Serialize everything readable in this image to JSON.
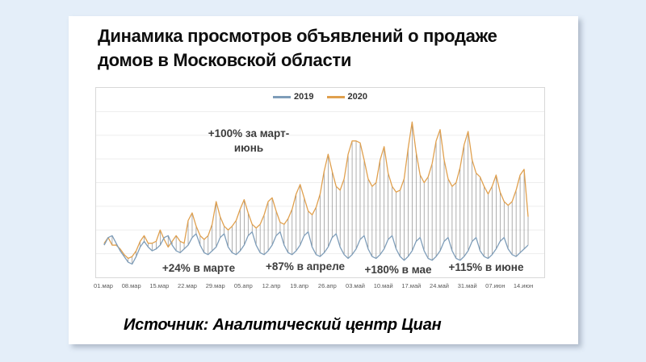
{
  "page": {
    "background": "#e4eef9",
    "card_background": "#ffffff"
  },
  "card": {
    "title_line1": "Динамика просмотров объявлений о продаже",
    "title_line2": "домов в Московской области",
    "source": "Источник: Аналитический центр Циан"
  },
  "chart": {
    "legend": [
      {
        "label": "2019",
        "color": "#7e9db9"
      },
      {
        "label": "2020",
        "color": "#e0a04e"
      }
    ],
    "annotations": {
      "march_june_line1": "+100% за март-",
      "march_june_line2": "июнь",
      "march": "+24% в марте",
      "april": "+87% в апреле",
      "may": "+180% в мае",
      "june": "+115% в июне"
    }
  },
  "chart_data": {
    "type": "line",
    "title": "Динамика просмотров объявлений о продаже домов в Московской области",
    "xlabel": "",
    "ylabel": "",
    "x_tick_labels": [
      "01.мар",
      "08.мар",
      "15.мар",
      "22.мар",
      "29.мар",
      "05.апр",
      "12.апр",
      "19.апр",
      "26.апр",
      "03.май",
      "10.май",
      "17.май",
      "24.май",
      "31.май",
      "07.июн",
      "14.июн"
    ],
    "x_unit": "daily, 01 March – 15 June",
    "ylim": [
      0,
      100
    ],
    "grid": "horizontal-light",
    "legend_position": "top-center",
    "connector_color": "#8c8c8c",
    "series": [
      {
        "name": "2019",
        "color": "#7e9db9",
        "values": [
          17,
          21,
          22,
          18,
          14,
          11,
          8,
          7,
          11,
          16,
          19,
          16,
          14,
          15,
          17,
          21,
          22,
          17,
          14,
          13,
          15,
          17,
          21,
          23,
          17,
          13,
          12,
          14,
          16,
          21,
          23,
          16,
          13,
          12,
          14,
          17,
          22,
          24,
          17,
          13,
          12,
          14,
          17,
          22,
          24,
          17,
          13,
          12,
          14,
          17,
          22,
          24,
          16,
          12,
          11,
          13,
          16,
          21,
          23,
          16,
          12,
          10,
          12,
          15,
          20,
          22,
          15,
          11,
          10,
          12,
          15,
          20,
          22,
          15,
          11,
          9,
          11,
          14,
          19,
          21,
          14,
          10,
          9,
          11,
          14,
          19,
          21,
          14,
          10,
          9,
          11,
          14,
          19,
          21,
          14,
          11,
          10,
          12,
          15,
          19,
          21,
          15,
          12,
          11,
          13,
          15,
          17
        ]
      },
      {
        "name": "2020",
        "color": "#e0a04e",
        "values": [
          18,
          21,
          17,
          17,
          15,
          12,
          10,
          11,
          14,
          19,
          22,
          18,
          18,
          19,
          25,
          20,
          16,
          19,
          22,
          19,
          18,
          30,
          34,
          27,
          22,
          20,
          22,
          28,
          40,
          32,
          27,
          25,
          27,
          30,
          36,
          41,
          34,
          28,
          26,
          28,
          33,
          40,
          42,
          35,
          29,
          28,
          31,
          36,
          44,
          49,
          42,
          35,
          33,
          37,
          44,
          56,
          65,
          56,
          48,
          46,
          52,
          65,
          72,
          72,
          71,
          62,
          52,
          48,
          50,
          62,
          69,
          55,
          48,
          45,
          46,
          52,
          68,
          82,
          66,
          54,
          50,
          53,
          60,
          72,
          78,
          62,
          52,
          48,
          50,
          58,
          70,
          77,
          62,
          55,
          53,
          48,
          44,
          48,
          54,
          45,
          40,
          38,
          40,
          46,
          54,
          57,
          32
        ]
      }
    ]
  }
}
